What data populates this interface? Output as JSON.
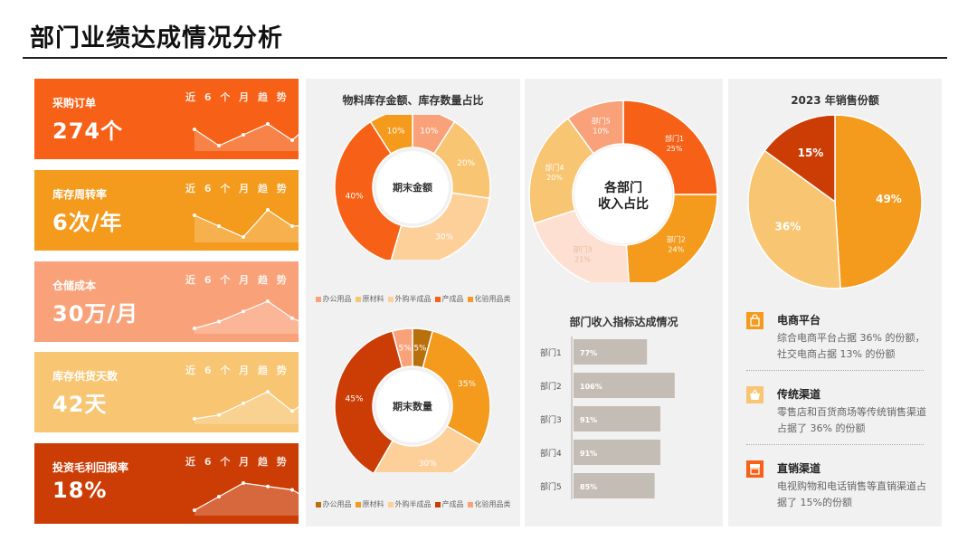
{
  "page_title": "部门业绩达成情况分析",
  "colors": {
    "dark_red": "#cc3d06",
    "orange_red": "#f76117",
    "orange": "#f49a1c",
    "salmon": "#f9a27a",
    "light_orange": "#f8c572",
    "peach": "#fde0d2",
    "bar_gray": "#c4bdb5",
    "brown": "#b8700c"
  },
  "kpis": [
    {
      "label": "采购订单",
      "value": "274个",
      "trend_label": "近 6 个 月 趋 势",
      "color": "#f76117",
      "trend": [
        4,
        1,
        3,
        5,
        2,
        6
      ]
    },
    {
      "label": "库存周转率",
      "value": "6次/年",
      "trend_label": "近 6 个 月 趋 势",
      "color": "#f49a1c",
      "trend": [
        5,
        3,
        1,
        6,
        3,
        3.2
      ]
    },
    {
      "label": "仓储成本",
      "value": "30万/月",
      "trend_label": "近 6 个 月 趋 势",
      "color": "#f9a27a",
      "trend": [
        1,
        2,
        3.5,
        5,
        2.5,
        1
      ]
    },
    {
      "label": "库存供货天数",
      "value": "42天",
      "trend_label": "近 6 个 月 趋 势",
      "color": "#f8c572",
      "trend": [
        1,
        1.5,
        3,
        4.5,
        2,
        4
      ]
    },
    {
      "label": "投资毛利回报率",
      "value": "18%",
      "trend_label": "近 6 个 月 趋 势",
      "color": "#cc3d06",
      "trend": [
        1,
        3,
        5,
        4.5,
        4,
        2
      ]
    }
  ],
  "inventory": {
    "title": "物料库存金额、库存数量占比",
    "amount_center": "期末金额",
    "quantity_center": "期末数量"
  },
  "income": {
    "donut_center_1": "各部门",
    "donut_center_2": "收入占比",
    "bar_title": "部门收入指标达成情况"
  },
  "sales": {
    "title": "2023 年销售份额",
    "channels": [
      {
        "title": "电商平台",
        "desc": "综合电商平台占据 36% 的份额，社交电商占据 13% 的份额",
        "icon": "shopping-bag-icon",
        "color": "#f49a1c"
      },
      {
        "title": "传统渠道",
        "desc": "零售店和百货商场等传统销售渠道占据了 36% 的份额",
        "icon": "basket-icon",
        "color": "#f8c572"
      },
      {
        "title": "直销渠道",
        "desc": "电视购物和电话销售等直销渠道占据了 15%的份额",
        "icon": "store-icon",
        "color": "#f76117"
      }
    ]
  },
  "chart_data": [
    {
      "type": "pie",
      "title": "期末金额",
      "categories": [
        "办公用品",
        "原材料",
        "外购半成品",
        "产成品",
        "化验用品类"
      ],
      "values": [
        10,
        20,
        30,
        40,
        10
      ],
      "labels": [
        "10%",
        "20%",
        "30%",
        "40%",
        "10%"
      ],
      "colors": [
        "#f9a27a",
        "#f8c572",
        "#fdd09a",
        "#f76117",
        "#f49a1c"
      ],
      "legend": "bottom"
    },
    {
      "type": "pie",
      "title": "期末数量",
      "categories": [
        "办公用品",
        "原材料",
        "外购半成品",
        "产成品",
        "化验用品类"
      ],
      "values": [
        5,
        35,
        30,
        45,
        5
      ],
      "labels": [
        "5%",
        "35%",
        "30%",
        "45%",
        "5%"
      ],
      "colors": [
        "#b8700c",
        "#f49a1c",
        "#fdd09a",
        "#cc3d06",
        "#f9a27a"
      ],
      "legend": "bottom"
    },
    {
      "type": "pie",
      "title": "各部门收入占比",
      "categories": [
        "部门1",
        "部门2",
        "部门3",
        "部门4",
        "部门5"
      ],
      "values": [
        25,
        24,
        21,
        20,
        10
      ],
      "labels": [
        "部门1\n25%",
        "部门2\n24%",
        "部门3\n21%",
        "部门4\n20%",
        "部门5\n10%"
      ],
      "colors": [
        "#f76117",
        "#f49a1c",
        "#fde0d2",
        "#f8c572",
        "#f9a27a"
      ]
    },
    {
      "type": "bar",
      "orientation": "horizontal",
      "title": "部门收入指标达成情况",
      "categories": [
        "部门1",
        "部门2",
        "部门3",
        "部门4",
        "部门5"
      ],
      "values": [
        77,
        106,
        91,
        91,
        85
      ],
      "labels": [
        "77%",
        "106%",
        "91%",
        "91%",
        "85%"
      ],
      "color": "#c4bdb5"
    },
    {
      "type": "pie",
      "title": "2023 年销售份额",
      "categories": [
        "电商平台",
        "传统渠道",
        "直销渠道"
      ],
      "values": [
        49,
        36,
        15
      ],
      "labels": [
        "49%",
        "36%",
        "15%"
      ],
      "colors": [
        "#f49a1c",
        "#f8c572",
        "#cc3d06"
      ]
    }
  ]
}
